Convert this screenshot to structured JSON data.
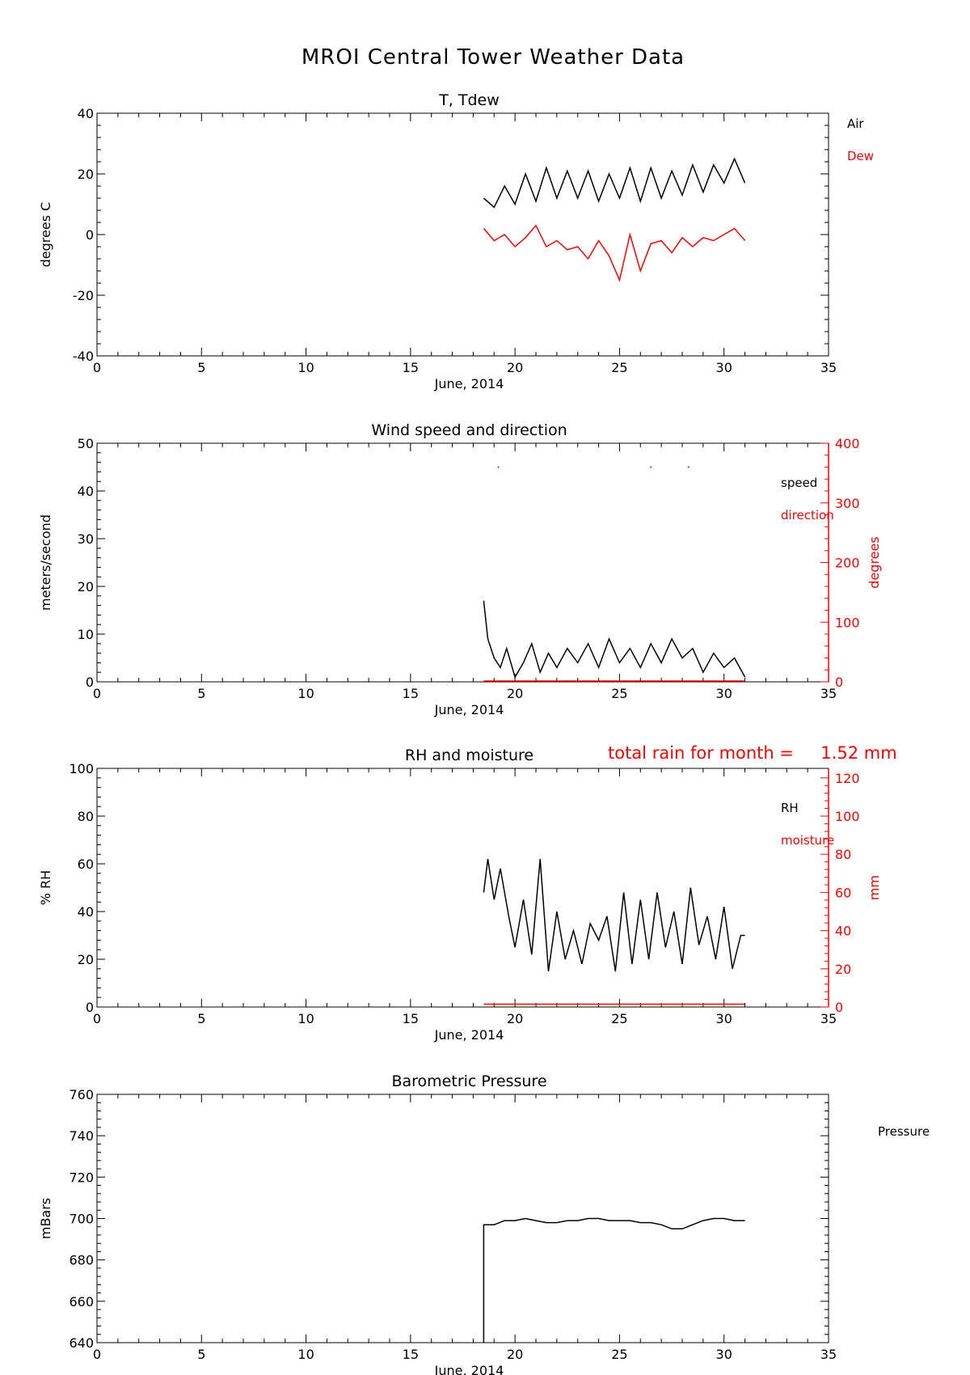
{
  "page": {
    "title": "MROI Central Tower Weather Data"
  },
  "colors": {
    "primary": "#000000",
    "secondary": "#ff0000"
  },
  "chart_data": [
    {
      "type": "line",
      "title": "T, Tdew",
      "xlabel": "June, 2014",
      "ylabel": "degrees C",
      "xlim": [
        0,
        35
      ],
      "ylim": [
        -40,
        40
      ],
      "x_ticks": [
        0,
        5,
        10,
        15,
        20,
        25,
        30,
        35
      ],
      "y_ticks": [
        -40,
        -20,
        0,
        20,
        40
      ],
      "legend": [
        "Air",
        "Dew"
      ],
      "series": [
        {
          "name": "Air",
          "color": "#000000",
          "x": [
            18.5,
            19.0,
            19.5,
            20.0,
            20.5,
            21.0,
            21.5,
            22.0,
            22.5,
            23.0,
            23.5,
            24.0,
            24.5,
            25.0,
            25.5,
            26.0,
            26.5,
            27.0,
            27.5,
            28.0,
            28.5,
            29.0,
            29.5,
            30.0,
            30.5,
            31.0
          ],
          "y": [
            12,
            9,
            16,
            10,
            20,
            11,
            22,
            12,
            21,
            12,
            21,
            11,
            20,
            12,
            22,
            11,
            22,
            12,
            21,
            13,
            23,
            14,
            23,
            17,
            25,
            17
          ]
        },
        {
          "name": "Dew",
          "color": "#ff0000",
          "x": [
            18.5,
            19.0,
            19.5,
            20.0,
            20.5,
            21.0,
            21.5,
            22.0,
            22.5,
            23.0,
            23.5,
            24.0,
            24.5,
            25.0,
            25.5,
            26.0,
            26.5,
            27.0,
            27.5,
            28.0,
            28.5,
            29.0,
            29.5,
            30.0,
            30.5,
            31.0
          ],
          "y": [
            2,
            -2,
            0,
            -4,
            -1,
            3,
            -4,
            -2,
            -5,
            -4,
            -8,
            -2,
            -7,
            -15,
            0,
            -12,
            -3,
            -2,
            -6,
            -1,
            -4,
            -1,
            -2,
            0,
            2,
            -2
          ]
        }
      ]
    },
    {
      "type": "line",
      "title": "Wind speed and direction",
      "xlabel": "June, 2014",
      "ylabel": "meters/second",
      "y2label": "degrees",
      "xlim": [
        0,
        35
      ],
      "ylim": [
        0,
        50
      ],
      "y2lim": [
        0,
        400
      ],
      "x_ticks": [
        0,
        5,
        10,
        15,
        20,
        25,
        30,
        35
      ],
      "y_ticks": [
        0,
        10,
        20,
        30,
        40,
        50
      ],
      "y2_ticks": [
        0,
        100,
        200,
        300,
        400
      ],
      "legend": [
        "speed",
        "direction"
      ],
      "series": [
        {
          "name": "speed",
          "color": "#000000",
          "x": [
            18.5,
            18.7,
            19.0,
            19.3,
            19.6,
            20.0,
            20.4,
            20.8,
            21.2,
            21.6,
            22.0,
            22.5,
            23.0,
            23.5,
            24.0,
            24.5,
            25.0,
            25.5,
            26.0,
            26.5,
            27.0,
            27.5,
            28.0,
            28.5,
            29.0,
            29.5,
            30.0,
            30.5,
            31.0
          ],
          "y": [
            17,
            9,
            5,
            3,
            7,
            1,
            4,
            8,
            2,
            6,
            3,
            7,
            4,
            8,
            3,
            9,
            4,
            7,
            3,
            8,
            4,
            9,
            5,
            7,
            2,
            6,
            3,
            5,
            1
          ]
        },
        {
          "name": "direction",
          "color": "#ff0000",
          "x": [
            19.2,
            26.5,
            28.3
          ],
          "y": [
            360,
            360,
            360
          ]
        }
      ]
    },
    {
      "type": "line",
      "title": "RH and moisture",
      "xlabel": "June, 2014",
      "ylabel": "% RH",
      "y2label": "mm",
      "annotation": "total rain for month =     1.52 mm",
      "xlim": [
        0,
        35
      ],
      "ylim": [
        0,
        100
      ],
      "y2lim": [
        0,
        125
      ],
      "x_ticks": [
        0,
        5,
        10,
        15,
        20,
        25,
        30,
        35
      ],
      "y_ticks": [
        0,
        20,
        40,
        60,
        80,
        100
      ],
      "y2_ticks": [
        0,
        20,
        40,
        60,
        80,
        100,
        120
      ],
      "legend": [
        "RH",
        "moisture"
      ],
      "series": [
        {
          "name": "RH",
          "color": "#000000",
          "x": [
            18.5,
            18.7,
            19.0,
            19.3,
            19.7,
            20.0,
            20.4,
            20.8,
            21.2,
            21.6,
            22.0,
            22.4,
            22.8,
            23.2,
            23.6,
            24.0,
            24.4,
            24.8,
            25.2,
            25.6,
            26.0,
            26.4,
            26.8,
            27.2,
            27.6,
            28.0,
            28.4,
            28.8,
            29.2,
            29.6,
            30.0,
            30.4,
            30.8,
            31.0
          ],
          "y": [
            48,
            62,
            45,
            58,
            38,
            25,
            45,
            22,
            62,
            15,
            40,
            20,
            32,
            18,
            35,
            28,
            38,
            15,
            48,
            18,
            45,
            20,
            48,
            25,
            40,
            18,
            50,
            26,
            38,
            20,
            42,
            16,
            30,
            30
          ]
        },
        {
          "name": "moisture",
          "color": "#ff0000",
          "x": [
            18.5,
            31.0
          ],
          "y": [
            1.5,
            1.5
          ]
        }
      ]
    },
    {
      "type": "line",
      "title": "Barometric Pressure",
      "xlabel": "June, 2014",
      "ylabel": "mBars",
      "xlim": [
        0,
        35
      ],
      "ylim": [
        640,
        760
      ],
      "x_ticks": [
        0,
        5,
        10,
        15,
        20,
        25,
        30,
        35
      ],
      "y_ticks": [
        640,
        660,
        680,
        700,
        720,
        740,
        760
      ],
      "legend": [
        "Pressure"
      ],
      "series": [
        {
          "name": "Pressure",
          "color": "#000000",
          "x": [
            18.5,
            19.0,
            19.5,
            20.0,
            20.5,
            21.0,
            21.5,
            22.0,
            22.5,
            23.0,
            23.5,
            24.0,
            24.5,
            25.0,
            25.5,
            26.0,
            26.5,
            27.0,
            27.5,
            28.0,
            28.5,
            29.0,
            29.5,
            30.0,
            30.5,
            31.0
          ],
          "y": [
            697,
            697,
            699,
            699,
            700,
            699,
            698,
            698,
            699,
            699,
            700,
            700,
            699,
            699,
            699,
            698,
            698,
            697,
            695,
            695,
            697,
            699,
            700,
            700,
            699,
            699
          ]
        }
      ]
    }
  ]
}
